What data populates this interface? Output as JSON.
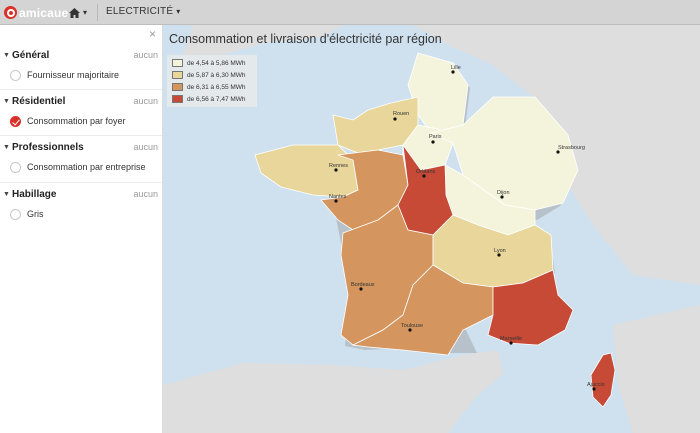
{
  "app": {
    "logo_text": "amicaue",
    "menu_label": "ELECTRICITÉ",
    "home_caret": "▾",
    "menu_caret": "▾"
  },
  "panel": {
    "close_label": "×",
    "sections": [
      {
        "title": "Général",
        "none_label": "aucun",
        "option": "Fournisseur majoritaire",
        "checked": false
      },
      {
        "title": "Résidentiel",
        "none_label": "aucun",
        "option": "Consommation par foyer",
        "checked": true
      },
      {
        "title": "Professionnels",
        "none_label": "aucun",
        "option": "Consommation par entreprise",
        "checked": false
      },
      {
        "title": "Habillage",
        "none_label": "aucun",
        "option": "Gris",
        "checked": false
      }
    ]
  },
  "map": {
    "title": "Consommation et livraison d'électricité par région",
    "legend": [
      {
        "label": "de 4,54 à 5,86 MWh",
        "color": "#f4f4dc"
      },
      {
        "label": "de 5,87 à 6,30 MWh",
        "color": "#e8d69b"
      },
      {
        "label": "de 6,31 à 6,55 MWh",
        "color": "#d4955e"
      },
      {
        "label": "de 6,56 à 7,47 MWh",
        "color": "#c64a36"
      }
    ],
    "cities": [
      "Lille",
      "Rouen",
      "Paris",
      "Strasbourg",
      "Rennes",
      "Orléans",
      "Nantes",
      "Dijon",
      "Lyon",
      "Bordeaux",
      "Toulouse",
      "Marseille",
      "Ajaccio"
    ],
    "colors": {
      "sea": "#cfe1ee",
      "land": "#dedede",
      "accent": "#d9302a"
    }
  }
}
